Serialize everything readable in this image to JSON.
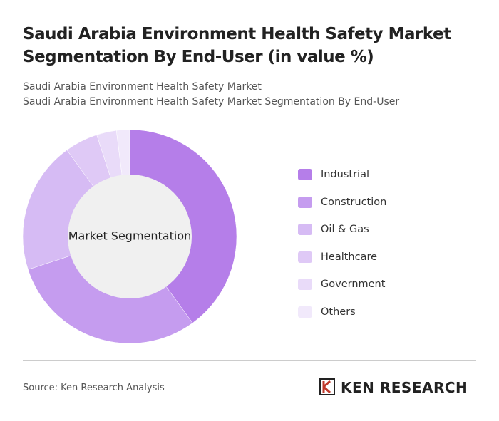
{
  "chart_data": {
    "type": "donut",
    "title": "Saudi Arabia Environment Health Safety Market Segmentation By End-User (in value %)",
    "subtitle": [
      "Saudi Arabia Environment Health Safety Market",
      "Saudi Arabia Environment Health Safety Market Segmentation By End-User"
    ],
    "center_label": "Market Segmentation",
    "categories": [
      "Industrial",
      "Construction",
      "Oil & Gas",
      "Healthcare",
      "Government",
      "Others"
    ],
    "values": [
      40,
      30,
      20,
      5,
      3,
      2
    ],
    "colors": [
      "#b57ee9",
      "#c59cef",
      "#d6bbf4",
      "#dfc9f6",
      "#e9dbf9",
      "#f1e9fb"
    ]
  },
  "footer": {
    "source": "Source: Ken Research Analysis",
    "brand": "KEN RESEARCH"
  }
}
